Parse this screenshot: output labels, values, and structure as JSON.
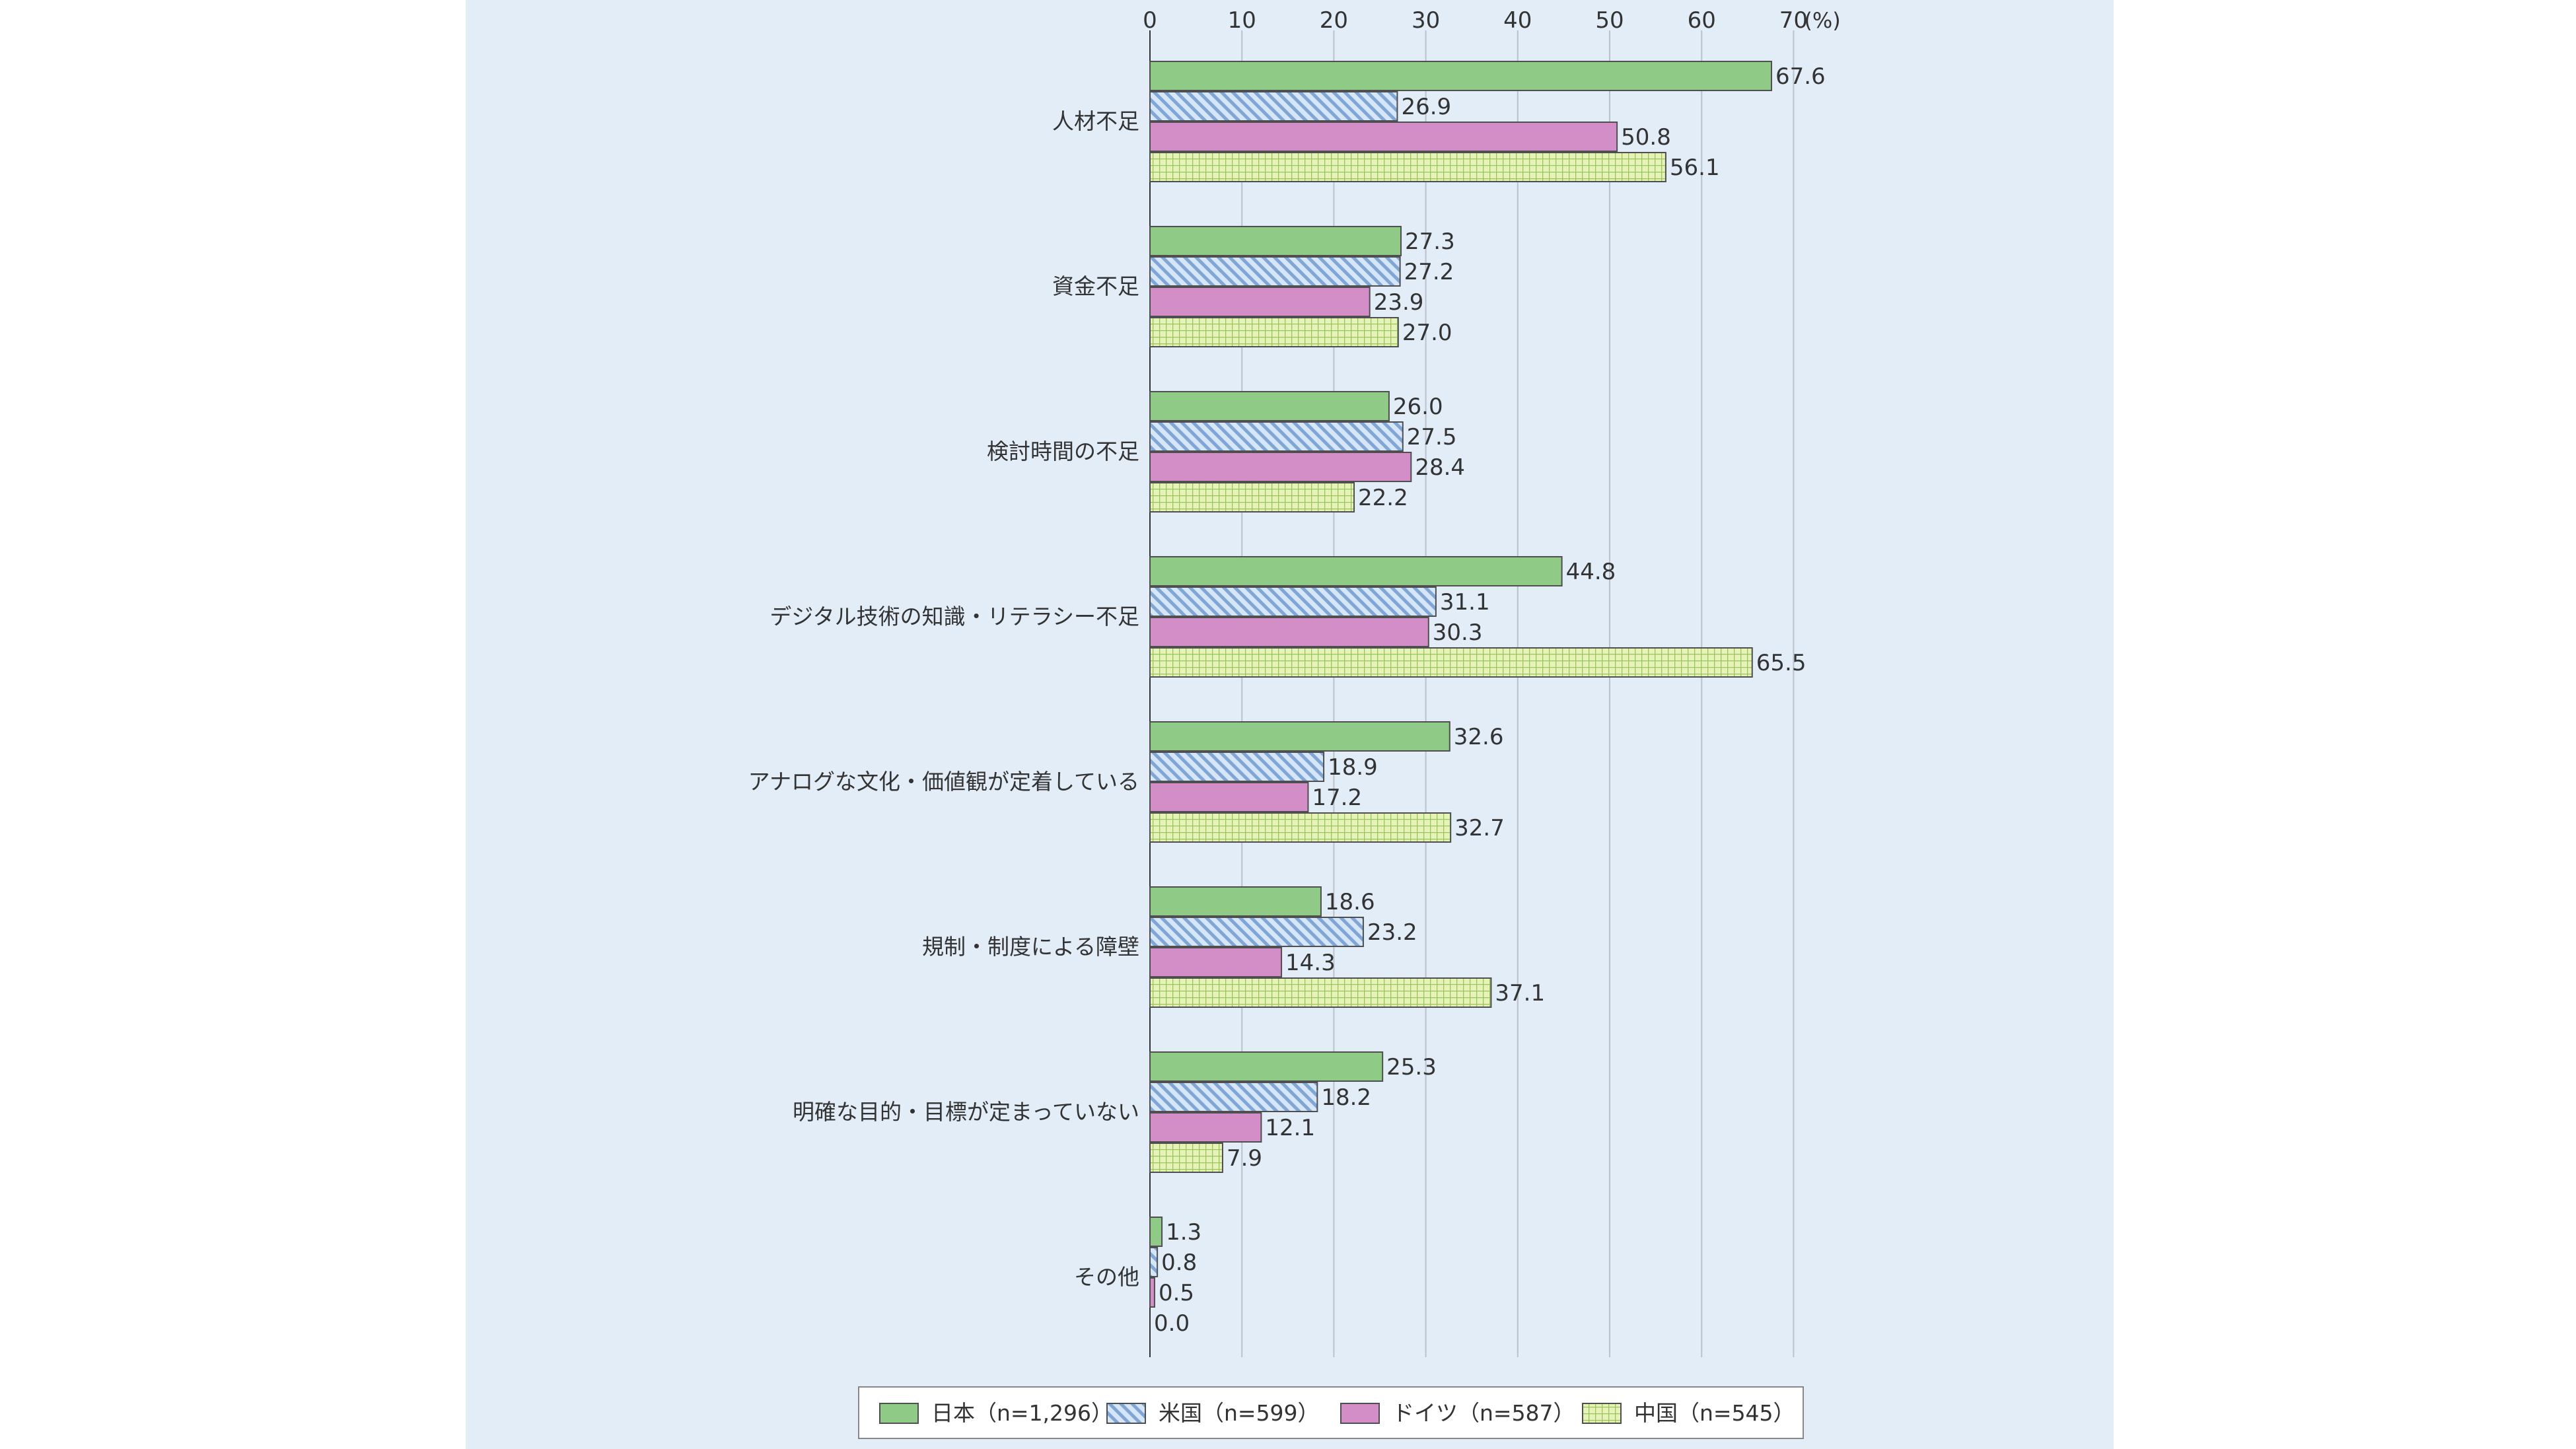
{
  "chart_data": {
    "type": "bar",
    "orientation": "horizontal",
    "title": "",
    "xlabel": "",
    "ylabel": "",
    "unit": "(%)",
    "xlim": [
      0,
      70
    ],
    "ticks": [
      0,
      10,
      20,
      30,
      40,
      50,
      60,
      70
    ],
    "tick_labels": [
      "0",
      "10",
      "20",
      "30",
      "40",
      "50",
      "60",
      "70"
    ],
    "grid": true,
    "legend_position": "bottom",
    "categories": [
      "人材不足",
      "資金不足",
      "検討時間の不足",
      "デジタル技術の知識・リテラシー不足",
      "アナログな文化・価値観が定着している",
      "規制・制度による障壁",
      "明確な目的・目標が定まっていない",
      "その他"
    ],
    "series": [
      {
        "name": "日本（n=1,296）",
        "color": "#8fcb86",
        "pattern": "solid",
        "values": [
          67.6,
          27.3,
          26.0,
          44.8,
          32.6,
          18.6,
          25.3,
          1.3
        ],
        "labels": [
          "67.6",
          "27.3",
          "26.0",
          "44.8",
          "32.6",
          "18.6",
          "25.3",
          "1.3"
        ]
      },
      {
        "name": "米国（n=599）",
        "color": "#b9d4ef",
        "pattern": "diagonal-hatch",
        "values": [
          26.9,
          27.2,
          27.5,
          31.1,
          18.9,
          23.2,
          18.2,
          0.8
        ],
        "labels": [
          "26.9",
          "27.2",
          "27.5",
          "31.1",
          "18.9",
          "23.2",
          "18.2",
          "0.8"
        ]
      },
      {
        "name": "ドイツ（n=587）",
        "color": "#d38ec8",
        "pattern": "solid",
        "values": [
          50.8,
          23.9,
          28.4,
          30.3,
          17.2,
          14.3,
          12.1,
          0.5
        ],
        "labels": [
          "50.8",
          "23.9",
          "28.4",
          "30.3",
          "17.2",
          "14.3",
          "12.1",
          "0.5"
        ]
      },
      {
        "name": "中国（n=545）",
        "color": "#d9eda3",
        "pattern": "grid",
        "values": [
          56.1,
          27.0,
          22.2,
          65.5,
          32.7,
          37.1,
          7.9,
          0.0
        ],
        "labels": [
          "56.1",
          "27.0",
          "22.2",
          "65.5",
          "32.7",
          "37.1",
          "7.9",
          "0.0"
        ]
      }
    ]
  }
}
